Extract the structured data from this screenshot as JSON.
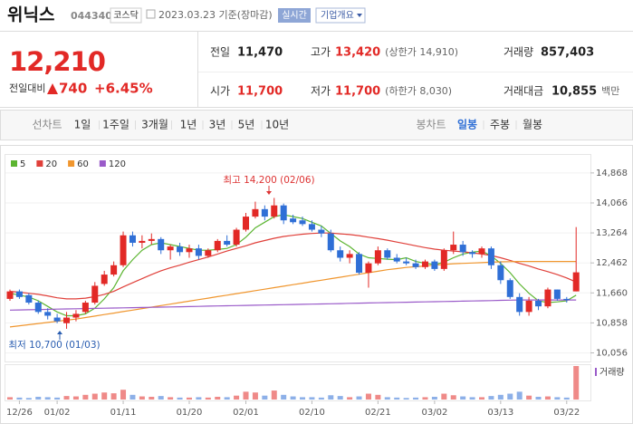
{
  "header": {
    "name": "위닉스",
    "code": "044340",
    "market": "코스닥",
    "date": "2023.03.23 기준(장마감)",
    "realtime": "실시간",
    "company": "기업개요"
  },
  "quote": {
    "price": "12,210",
    "change_label": "전일대비",
    "change": "740",
    "change_rate": "+6.45%",
    "stats": [
      {
        "label": "전일",
        "value": "11,470"
      },
      {
        "label": "고가",
        "value": "13,420",
        "note": "(상한가 14,910)"
      },
      {
        "label": "거래량",
        "value": "857,403"
      },
      {
        "label": "시가",
        "value": "11,700"
      },
      {
        "label": "저가",
        "value": "11,700",
        "note": "(하한가 8,030)"
      },
      {
        "label": "거래대금",
        "value": "10,855",
        "note": "백만"
      }
    ]
  },
  "tabs": {
    "line": [
      "선차트",
      "1일",
      "1주일",
      "3개월",
      "1년",
      "3년",
      "5년",
      "10년"
    ],
    "candle": [
      "봉차트",
      "일봉",
      "주봉",
      "월봉"
    ]
  },
  "chart_data": {
    "type": "candlestick",
    "categories": [
      null,
      "12/26",
      null,
      null,
      null,
      "01/02",
      null,
      null,
      null,
      null,
      null,
      null,
      "01/11",
      null,
      null,
      null,
      null,
      null,
      null,
      "01/20",
      null,
      null,
      null,
      null,
      null,
      "02/01",
      null,
      null,
      null,
      null,
      null,
      null,
      "02/10",
      null,
      null,
      null,
      null,
      null,
      null,
      "02/21",
      null,
      null,
      null,
      null,
      null,
      "03/02",
      null,
      null,
      null,
      null,
      null,
      null,
      "03/13",
      null,
      null,
      null,
      null,
      null,
      null,
      "03/22",
      null
    ],
    "open": [
      11500,
      11700,
      11600,
      11400,
      11150,
      11000,
      10850,
      11000,
      11150,
      11400,
      11900,
      12150,
      12400,
      13200,
      13000,
      13050,
      13100,
      12800,
      12900,
      12750,
      12850,
      12650,
      12800,
      13050,
      12950,
      13350,
      13700,
      13900,
      13700,
      14000,
      13650,
      13600,
      13500,
      13350,
      13250,
      12800,
      12600,
      12700,
      12200,
      12450,
      12800,
      12600,
      12500,
      12450,
      12350,
      12500,
      12300,
      12800,
      12950,
      12750,
      12700,
      12850,
      12400,
      12000,
      11550,
      11150,
      11450,
      11300,
      11750,
      11500,
      11700
    ],
    "high": [
      11750,
      11750,
      11650,
      11450,
      11250,
      11100,
      11150,
      11200,
      11450,
      11950,
      12250,
      12500,
      13300,
      13300,
      13200,
      13250,
      13150,
      12950,
      13000,
      12950,
      12950,
      12850,
      13100,
      13200,
      13400,
      13800,
      14100,
      14000,
      14200,
      14050,
      13750,
      13700,
      13600,
      13450,
      13350,
      12900,
      12800,
      12750,
      12500,
      12900,
      12850,
      12700,
      12600,
      12550,
      12550,
      12550,
      12850,
      13300,
      13050,
      12800,
      12900,
      12900,
      12500,
      12050,
      11650,
      11550,
      11500,
      11800,
      11750,
      11550,
      13420
    ],
    "low": [
      11450,
      11500,
      11350,
      11100,
      10950,
      10850,
      10700,
      10900,
      11100,
      11350,
      11850,
      12100,
      12350,
      12900,
      12850,
      12950,
      12700,
      12550,
      12650,
      12600,
      12550,
      12600,
      12750,
      12900,
      12900,
      13300,
      13650,
      13600,
      13650,
      13500,
      13500,
      13450,
      13300,
      13150,
      12750,
      12500,
      12450,
      12150,
      11800,
      12400,
      12550,
      12450,
      12400,
      12300,
      12300,
      12250,
      12250,
      12700,
      12650,
      12600,
      12600,
      12300,
      11900,
      11500,
      11050,
      11050,
      11200,
      11250,
      11450,
      11400,
      11700
    ],
    "close": [
      11700,
      11550,
      11400,
      11150,
      11050,
      10900,
      11000,
      11100,
      11400,
      11850,
      12150,
      12400,
      13200,
      13000,
      13050,
      13100,
      12800,
      12900,
      12750,
      12850,
      12650,
      12800,
      13050,
      12950,
      13350,
      13700,
      13900,
      13700,
      14000,
      13600,
      13550,
      13500,
      13350,
      13250,
      12800,
      12600,
      12700,
      12200,
      12450,
      12800,
      12600,
      12500,
      12450,
      12350,
      12500,
      12300,
      12800,
      12950,
      12750,
      12700,
      12850,
      12400,
      12000,
      11550,
      11150,
      11450,
      11300,
      11750,
      11500,
      11470,
      12210
    ],
    "up_color": "#e22926",
    "down_color": "#2f6fd6",
    "moving_averages": [
      {
        "name": "5",
        "color": "#5cb531",
        "values": [
          11650,
          11600,
          11550,
          11450,
          11300,
          11150,
          11050,
          11050,
          11100,
          11250,
          11500,
          11800,
          12250,
          12550,
          12800,
          12950,
          13000,
          12950,
          12900,
          12850,
          12800,
          12800,
          12820,
          12850,
          12950,
          13150,
          13400,
          13550,
          13700,
          13750,
          13700,
          13650,
          13550,
          13450,
          13250,
          13050,
          12900,
          12700,
          12600,
          12580,
          12560,
          12550,
          12600,
          12500,
          12450,
          12420,
          12480,
          12600,
          12700,
          12750,
          12780,
          12650,
          12450,
          12200,
          11900,
          11650,
          11450,
          11400,
          11420,
          11450,
          11600
        ]
      },
      {
        "name": "20",
        "color": "#e0403a",
        "values": [
          11700,
          11680,
          11650,
          11620,
          11580,
          11530,
          11500,
          11500,
          11520,
          11560,
          11620,
          11700,
          11820,
          11930,
          12040,
          12150,
          12250,
          12330,
          12400,
          12480,
          12550,
          12620,
          12700,
          12780,
          12850,
          12920,
          13000,
          13060,
          13120,
          13170,
          13200,
          13230,
          13250,
          13260,
          13260,
          13240,
          13220,
          13190,
          13150,
          13110,
          13070,
          13020,
          12970,
          12920,
          12870,
          12830,
          12800,
          12780,
          12760,
          12730,
          12700,
          12660,
          12600,
          12530,
          12450,
          12380,
          12300,
          12230,
          12150,
          12060,
          11950
        ]
      },
      {
        "name": "60",
        "color": "#f0962e",
        "values": [
          10750,
          10780,
          10810,
          10840,
          10870,
          10900,
          10930,
          10960,
          11000,
          11040,
          11080,
          11120,
          11160,
          11200,
          11240,
          11280,
          11320,
          11360,
          11400,
          11440,
          11480,
          11520,
          11560,
          11600,
          11640,
          11680,
          11720,
          11760,
          11800,
          11840,
          11880,
          11920,
          11960,
          12000,
          12040,
          12080,
          12120,
          12160,
          12200,
          12240,
          12280,
          12310,
          12340,
          12360,
          12380,
          12400,
          12420,
          12440,
          12450,
          12460,
          12470,
          12480,
          12490,
          12495,
          12500,
          12500,
          12500,
          12500,
          12500,
          12500,
          12500
        ]
      },
      {
        "name": "120",
        "color": "#9a5bc9",
        "values": [
          11200,
          11205,
          11210,
          11215,
          11220,
          11225,
          11230,
          11235,
          11240,
          11245,
          11250,
          11255,
          11260,
          11265,
          11270,
          11275,
          11280,
          11285,
          11290,
          11295,
          11300,
          11305,
          11310,
          11315,
          11320,
          11325,
          11330,
          11335,
          11340,
          11345,
          11350,
          11355,
          11360,
          11365,
          11370,
          11375,
          11380,
          11385,
          11390,
          11395,
          11400,
          11405,
          11410,
          11415,
          11420,
          11425,
          11430,
          11435,
          11440,
          11445,
          11450,
          11455,
          11460,
          11465,
          11470,
          11470,
          11470,
          11470,
          11470,
          11470,
          11470
        ]
      }
    ],
    "volume": {
      "name": "거래량",
      "values": [
        60000,
        50000,
        40000,
        70000,
        60000,
        50000,
        90000,
        80000,
        120000,
        150000,
        180000,
        160000,
        250000,
        120000,
        80000,
        70000,
        90000,
        60000,
        50000,
        50000,
        60000,
        50000,
        70000,
        60000,
        100000,
        200000,
        180000,
        100000,
        230000,
        120000,
        80000,
        60000,
        60000,
        50000,
        110000,
        90000,
        60000,
        80000,
        150000,
        120000,
        60000,
        50000,
        40000,
        50000,
        60000,
        70000,
        150000,
        110000,
        80000,
        60000,
        60000,
        90000,
        120000,
        150000,
        200000,
        100000,
        70000,
        80000,
        60000,
        50000,
        857403
      ]
    },
    "ylim": [
      9850,
      15180
    ],
    "yticks": [
      {
        "value": 14868,
        "label": "14,868"
      },
      {
        "value": 14066,
        "label": "14,066"
      },
      {
        "value": 13264,
        "label": "13,264"
      },
      {
        "value": 12462,
        "label": "12,462"
      },
      {
        "value": 11660,
        "label": "11,660"
      },
      {
        "value": 10858,
        "label": "10,858"
      },
      {
        "value": 10056,
        "label": "10,056"
      }
    ],
    "annotations": [
      "최고 14,200 (02/06)",
      "최저 10,700 (01/03)"
    ]
  }
}
